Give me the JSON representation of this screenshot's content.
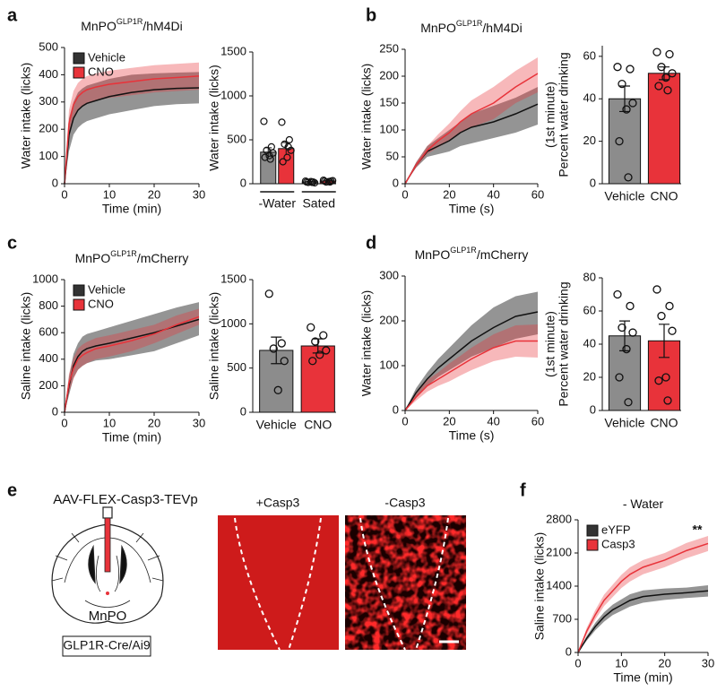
{
  "panels": [
    "a",
    "b",
    "c",
    "d",
    "e",
    "f"
  ],
  "figure_e": {
    "construct": "AAV-FLEX-Casp3-TEVp",
    "region": "MnPO",
    "mouse": "GLP1R-Cre/Ai9",
    "image_labels": [
      "+Casp3",
      "-Casp3"
    ]
  },
  "chart_data": [
    {
      "type": "line",
      "title": [
        "MnPO",
        "GLP1R",
        "/hM4Di"
      ],
      "xlabel": "Time (min)",
      "ylabel": "Water intake (licks)",
      "x": [
        0,
        1,
        2,
        3,
        4,
        5,
        7,
        10,
        15,
        20,
        25,
        30
      ],
      "xlim": [
        0,
        30
      ],
      "xticks": [
        0,
        10,
        20,
        30
      ],
      "ylim": [
        0,
        500
      ],
      "yticks": [
        0,
        100,
        200,
        300,
        400,
        500
      ],
      "legend": "upper left",
      "series": [
        {
          "name": "Vehicle",
          "color": "#111111",
          "values": [
            0,
            180,
            240,
            270,
            285,
            295,
            305,
            320,
            335,
            345,
            350,
            352
          ],
          "lower": [
            0,
            120,
            180,
            205,
            220,
            230,
            240,
            255,
            270,
            285,
            292,
            295
          ],
          "upper": [
            0,
            240,
            300,
            335,
            350,
            360,
            370,
            385,
            400,
            405,
            408,
            410
          ]
        },
        {
          "name": "CNO",
          "color": "#e8333a",
          "values": [
            0,
            220,
            290,
            320,
            335,
            345,
            355,
            365,
            375,
            385,
            390,
            395
          ],
          "lower": [
            0,
            170,
            240,
            270,
            285,
            295,
            305,
            315,
            325,
            335,
            340,
            345
          ],
          "upper": [
            0,
            270,
            340,
            370,
            385,
            395,
            405,
            415,
            425,
            435,
            440,
            445
          ]
        }
      ]
    },
    {
      "type": "grouped_bar",
      "ylabel": [
        "Water intake (licks)"
      ],
      "categories": [
        "-Water",
        "Sated"
      ],
      "ylim": [
        0,
        1500
      ],
      "yticks": [
        0,
        500,
        1000,
        1500
      ],
      "series": [
        {
          "color": "#8c8c8c",
          "values": [
            360,
            20
          ],
          "errors": [
            50,
            5
          ],
          "points": [
            [
              710,
              420,
              380,
              350,
              320,
              300,
              280
            ],
            [
              30,
              20,
              15,
              10,
              25,
              20,
              15
            ]
          ]
        },
        {
          "color": "#e8333a",
          "values": [
            400,
            30
          ],
          "errors": [
            70,
            8
          ],
          "points": [
            [
              700,
              500,
              450,
              380,
              300,
              250,
              420
            ],
            [
              40,
              30,
              20,
              35,
              25,
              30,
              20
            ]
          ]
        }
      ]
    },
    {
      "type": "line",
      "title": [
        "MnPO",
        "GLP1R",
        "/hM4Di"
      ],
      "xlabel": "Time (s)",
      "ylabel": "Water intake (licks)",
      "x": [
        0,
        5,
        10,
        15,
        20,
        25,
        30,
        40,
        50,
        60
      ],
      "xlim": [
        0,
        60
      ],
      "xticks": [
        0,
        20,
        40,
        60
      ],
      "ylim": [
        0,
        250
      ],
      "yticks": [
        0,
        50,
        100,
        150,
        200,
        250
      ],
      "series": [
        {
          "color": "#111111",
          "values": [
            0,
            35,
            60,
            70,
            80,
            95,
            105,
            115,
            130,
            148
          ],
          "lower": [
            0,
            30,
            50,
            55,
            60,
            70,
            75,
            85,
            95,
            110
          ],
          "upper": [
            0,
            40,
            70,
            85,
            100,
            115,
            130,
            145,
            160,
            180
          ]
        },
        {
          "color": "#e8333a",
          "values": [
            0,
            35,
            62,
            80,
            95,
            115,
            130,
            150,
            180,
            205
          ],
          "lower": [
            0,
            30,
            55,
            68,
            80,
            95,
            105,
            120,
            150,
            170
          ],
          "upper": [
            0,
            40,
            70,
            92,
            112,
            135,
            155,
            180,
            210,
            235
          ]
        }
      ]
    },
    {
      "type": "bar",
      "ylabel": [
        "Percent water drinking",
        "(1st minute)"
      ],
      "categories": [
        "Vehicle",
        "CNO"
      ],
      "ylim": [
        0,
        65
      ],
      "yticks": [
        0,
        20,
        40,
        60
      ],
      "colors": [
        "#8c8c8c",
        "#e8333a"
      ],
      "values": [
        40,
        52
      ],
      "errors": [
        6,
        3
      ],
      "points": [
        [
          55,
          54,
          47,
          38,
          35,
          20,
          3
        ],
        [
          62,
          61,
          55,
          52,
          50,
          46,
          44
        ]
      ]
    },
    {
      "type": "line",
      "title": [
        "MnPO",
        "GLP1R",
        "/mCherry"
      ],
      "xlabel": "Time (min)",
      "ylabel": "Saline intake (licks)",
      "x": [
        0,
        1,
        2,
        3,
        4,
        5,
        7,
        10,
        15,
        20,
        25,
        30
      ],
      "xlim": [
        0,
        30
      ],
      "xticks": [
        0,
        10,
        20,
        30
      ],
      "ylim": [
        0,
        1000
      ],
      "yticks": [
        0,
        200,
        400,
        600,
        800,
        1000
      ],
      "legend": "upper left",
      "series": [
        {
          "name": "Vehicle",
          "color": "#111111",
          "values": [
            0,
            200,
            350,
            420,
            460,
            480,
            500,
            520,
            560,
            600,
            650,
            700
          ],
          "lower": [
            0,
            130,
            260,
            320,
            350,
            370,
            390,
            400,
            430,
            460,
            520,
            580
          ],
          "upper": [
            0,
            270,
            440,
            520,
            570,
            590,
            610,
            640,
            690,
            740,
            790,
            830
          ]
        },
        {
          "name": "CNO",
          "color": "#e8333a",
          "values": [
            0,
            220,
            330,
            400,
            430,
            450,
            480,
            500,
            540,
            590,
            660,
            720
          ],
          "lower": [
            0,
            150,
            250,
            320,
            350,
            370,
            400,
            420,
            460,
            520,
            590,
            660
          ],
          "upper": [
            0,
            290,
            410,
            480,
            510,
            530,
            560,
            580,
            620,
            660,
            730,
            780
          ]
        }
      ]
    },
    {
      "type": "bar",
      "ylabel": [
        "Saline intake (licks)"
      ],
      "categories": [
        "Vehicle",
        "CNO"
      ],
      "ylim": [
        0,
        1500
      ],
      "yticks": [
        0,
        500,
        1000,
        1500
      ],
      "colors": [
        "#8c8c8c",
        "#e8333a"
      ],
      "values": [
        700,
        750
      ],
      "errors": [
        150,
        80
      ],
      "points": [
        [
          1340,
          780,
          720,
          580,
          250
        ],
        [
          960,
          870,
          800,
          700,
          650,
          580
        ]
      ]
    },
    {
      "type": "line",
      "title": [
        "MnPO",
        "GLP1R",
        "/mCherry"
      ],
      "xlabel": "Time (s)",
      "ylabel": "Water intake (licks)",
      "x": [
        0,
        5,
        10,
        15,
        20,
        25,
        30,
        40,
        50,
        60
      ],
      "xlim": [
        0,
        60
      ],
      "xticks": [
        0,
        20,
        40,
        60
      ],
      "ylim": [
        0,
        300
      ],
      "yticks": [
        0,
        100,
        200,
        300
      ],
      "series": [
        {
          "color": "#111111",
          "values": [
            0,
            40,
            70,
            95,
            115,
            135,
            155,
            185,
            210,
            220
          ],
          "lower": [
            0,
            30,
            55,
            75,
            90,
            105,
            120,
            140,
            160,
            170
          ],
          "upper": [
            0,
            50,
            85,
            115,
            140,
            165,
            190,
            230,
            255,
            265
          ]
        },
        {
          "color": "#e8333a",
          "values": [
            0,
            30,
            55,
            70,
            85,
            100,
            115,
            140,
            155,
            155
          ],
          "lower": [
            0,
            22,
            42,
            55,
            65,
            78,
            90,
            110,
            120,
            118
          ],
          "upper": [
            0,
            38,
            68,
            85,
            105,
            122,
            140,
            170,
            190,
            192
          ]
        }
      ]
    },
    {
      "type": "bar",
      "ylabel": [
        "Percent water drinking",
        "(1st minute)"
      ],
      "categories": [
        "Vehicle",
        "CNO"
      ],
      "ylim": [
        0,
        80
      ],
      "yticks": [
        0,
        20,
        40,
        60,
        80
      ],
      "colors": [
        "#8c8c8c",
        "#e8333a"
      ],
      "values": [
        45,
        42
      ],
      "errors": [
        9,
        10
      ],
      "points": [
        [
          70,
          63,
          50,
          47,
          37,
          20,
          5
        ],
        [
          73,
          63,
          57,
          48,
          20,
          18,
          6
        ]
      ]
    },
    {
      "type": "line",
      "title": [
        "- Water"
      ],
      "xlabel": "Time (min)",
      "ylabel": "Saline intake (licks)",
      "x": [
        0,
        2,
        4,
        6,
        8,
        10,
        12,
        15,
        20,
        25,
        30
      ],
      "xlim": [
        0,
        30
      ],
      "xticks": [
        0,
        10,
        20,
        30
      ],
      "ylim": [
        0,
        2800
      ],
      "yticks": [
        0,
        700,
        1400,
        2100,
        2800
      ],
      "legend": "upper left",
      "annotation": "**",
      "series": [
        {
          "name": "eYFP",
          "color": "#111111",
          "values": [
            0,
            300,
            550,
            750,
            900,
            1000,
            1100,
            1180,
            1230,
            1260,
            1300
          ],
          "lower": [
            0,
            250,
            470,
            650,
            790,
            880,
            970,
            1050,
            1110,
            1150,
            1180
          ],
          "upper": [
            0,
            350,
            630,
            850,
            1010,
            1120,
            1230,
            1310,
            1350,
            1370,
            1420
          ]
        },
        {
          "name": "Casp3",
          "color": "#e8333a",
          "values": [
            0,
            450,
            800,
            1100,
            1300,
            1500,
            1650,
            1800,
            1950,
            2150,
            2300
          ],
          "lower": [
            0,
            380,
            700,
            980,
            1170,
            1360,
            1500,
            1650,
            1800,
            1990,
            2140
          ],
          "upper": [
            0,
            520,
            900,
            1220,
            1430,
            1640,
            1800,
            1950,
            2100,
            2310,
            2460
          ]
        }
      ]
    }
  ]
}
